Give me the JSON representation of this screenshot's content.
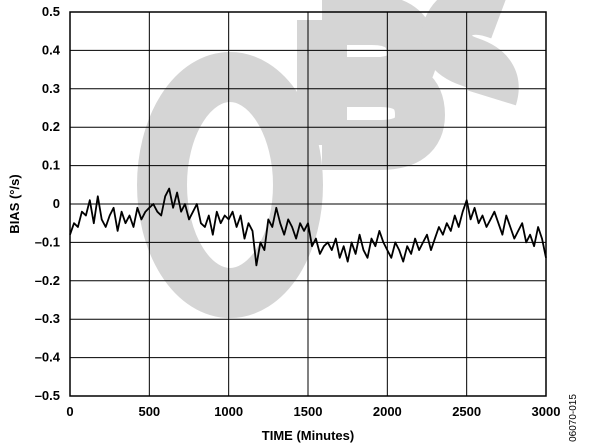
{
  "figure_id": "06070-015",
  "colors": {
    "line": "#000000",
    "grid": "#000000",
    "watermark": "#d3d3d3",
    "background": "#ffffff"
  },
  "watermark": {
    "text": "OBS"
  },
  "chart_data": {
    "type": "line",
    "title": "",
    "xlabel": "TIME (Minutes)",
    "ylabel": "BIAS (°/s)",
    "xlim": [
      0,
      3000
    ],
    "ylim": [
      -0.5,
      0.5
    ],
    "xticks": [
      0,
      500,
      1000,
      1500,
      2000,
      2500,
      3000
    ],
    "xtick_labels": [
      "0",
      "500",
      "1000",
      "1500",
      "2000",
      "2500",
      "3000"
    ],
    "yticks": [
      0.5,
      0.4,
      0.3,
      0.2,
      0.1,
      0,
      -0.1,
      -0.2,
      -0.3,
      -0.4,
      -0.5
    ],
    "ytick_labels": [
      "0.5",
      "0.4",
      "0.3",
      "0.2",
      "0.1",
      "0",
      "–0.1",
      "–0.2",
      "–0.3",
      "–0.4",
      "–0.5"
    ],
    "grid": true,
    "series": [
      {
        "x": [
          0,
          25,
          50,
          75,
          100,
          125,
          150,
          175,
          200,
          225,
          250,
          275,
          300,
          325,
          350,
          375,
          400,
          425,
          450,
          475,
          500,
          525,
          550,
          575,
          600,
          625,
          650,
          675,
          700,
          725,
          750,
          775,
          800,
          825,
          850,
          875,
          900,
          925,
          950,
          975,
          1000,
          1025,
          1050,
          1075,
          1100,
          1125,
          1150,
          1175,
          1200,
          1225,
          1250,
          1275,
          1300,
          1325,
          1350,
          1375,
          1400,
          1425,
          1450,
          1475,
          1500,
          1525,
          1550,
          1575,
          1600,
          1625,
          1650,
          1675,
          1700,
          1725,
          1750,
          1775,
          1800,
          1825,
          1850,
          1875,
          1900,
          1925,
          1950,
          1975,
          2000,
          2025,
          2050,
          2075,
          2100,
          2125,
          2150,
          2175,
          2200,
          2225,
          2250,
          2275,
          2300,
          2325,
          2350,
          2375,
          2400,
          2425,
          2450,
          2475,
          2500,
          2525,
          2550,
          2575,
          2600,
          2625,
          2650,
          2675,
          2700,
          2725,
          2750,
          2775,
          2800,
          2825,
          2850,
          2875,
          2900,
          2925,
          2950,
          2975,
          3000
        ],
        "y": [
          -0.08,
          -0.05,
          -0.06,
          -0.02,
          -0.03,
          0.01,
          -0.05,
          0.02,
          -0.04,
          -0.06,
          -0.03,
          -0.01,
          -0.07,
          -0.02,
          -0.05,
          -0.03,
          -0.06,
          -0.01,
          -0.04,
          -0.02,
          -0.01,
          0.0,
          -0.02,
          -0.03,
          0.02,
          0.04,
          -0.01,
          0.03,
          -0.02,
          0.0,
          -0.04,
          -0.02,
          0.0,
          -0.05,
          -0.06,
          -0.03,
          -0.08,
          -0.02,
          -0.05,
          -0.03,
          -0.04,
          -0.02,
          -0.06,
          -0.03,
          -0.09,
          -0.05,
          -0.07,
          -0.16,
          -0.1,
          -0.12,
          -0.04,
          -0.06,
          -0.01,
          -0.05,
          -0.08,
          -0.04,
          -0.06,
          -0.09,
          -0.05,
          -0.07,
          -0.05,
          -0.11,
          -0.09,
          -0.13,
          -0.11,
          -0.1,
          -0.12,
          -0.09,
          -0.14,
          -0.11,
          -0.15,
          -0.1,
          -0.13,
          -0.08,
          -0.12,
          -0.14,
          -0.09,
          -0.11,
          -0.07,
          -0.1,
          -0.12,
          -0.14,
          -0.1,
          -0.12,
          -0.15,
          -0.11,
          -0.13,
          -0.09,
          -0.12,
          -0.1,
          -0.08,
          -0.12,
          -0.09,
          -0.06,
          -0.08,
          -0.05,
          -0.07,
          -0.03,
          -0.06,
          -0.02,
          0.01,
          -0.04,
          -0.01,
          -0.05,
          -0.03,
          -0.06,
          -0.04,
          -0.02,
          -0.05,
          -0.08,
          -0.03,
          -0.06,
          -0.09,
          -0.07,
          -0.05,
          -0.1,
          -0.08,
          -0.11,
          -0.06,
          -0.09,
          -0.14
        ]
      }
    ]
  }
}
